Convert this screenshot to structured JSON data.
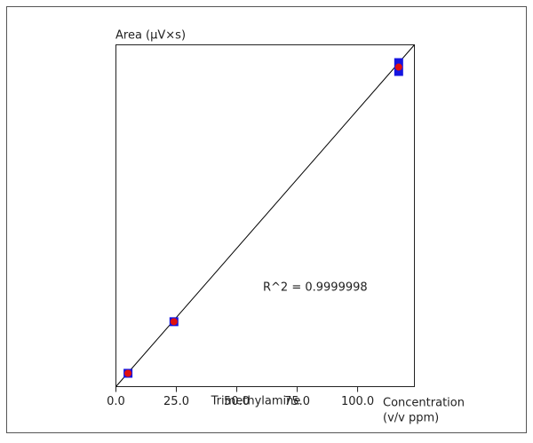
{
  "chart_data": {
    "type": "scatter",
    "y_label": "Area (µV×s)",
    "x_label": "Trimethylamine",
    "x_unit_label": [
      "Concentration",
      "(v/v ppm)"
    ],
    "annotation": "R^2 = 0.9999998",
    "xlim": [
      0,
      123.5
    ],
    "ylim": [
      0,
      100
    ],
    "xticks": [
      {
        "value": 0,
        "label": "0.0"
      },
      {
        "value": 25,
        "label": "25.0"
      },
      {
        "value": 50,
        "label": "50.0"
      },
      {
        "value": 75,
        "label": "75.0"
      },
      {
        "value": 100,
        "label": "100.0"
      }
    ],
    "series": [
      {
        "marker": "square",
        "color": "#1515e0",
        "x": [
          5,
          24,
          117,
          117
        ],
        "values": [
          3.9,
          19.0,
          92.2,
          94.8
        ]
      },
      {
        "marker": "dot",
        "color": "#e01010",
        "x": [
          5,
          24,
          117
        ],
        "values": [
          3.9,
          19.0,
          93.5
        ]
      },
      {
        "marker": "line",
        "color": "#000000",
        "x": [
          0,
          123.5
        ],
        "values": [
          0,
          100
        ]
      }
    ]
  }
}
